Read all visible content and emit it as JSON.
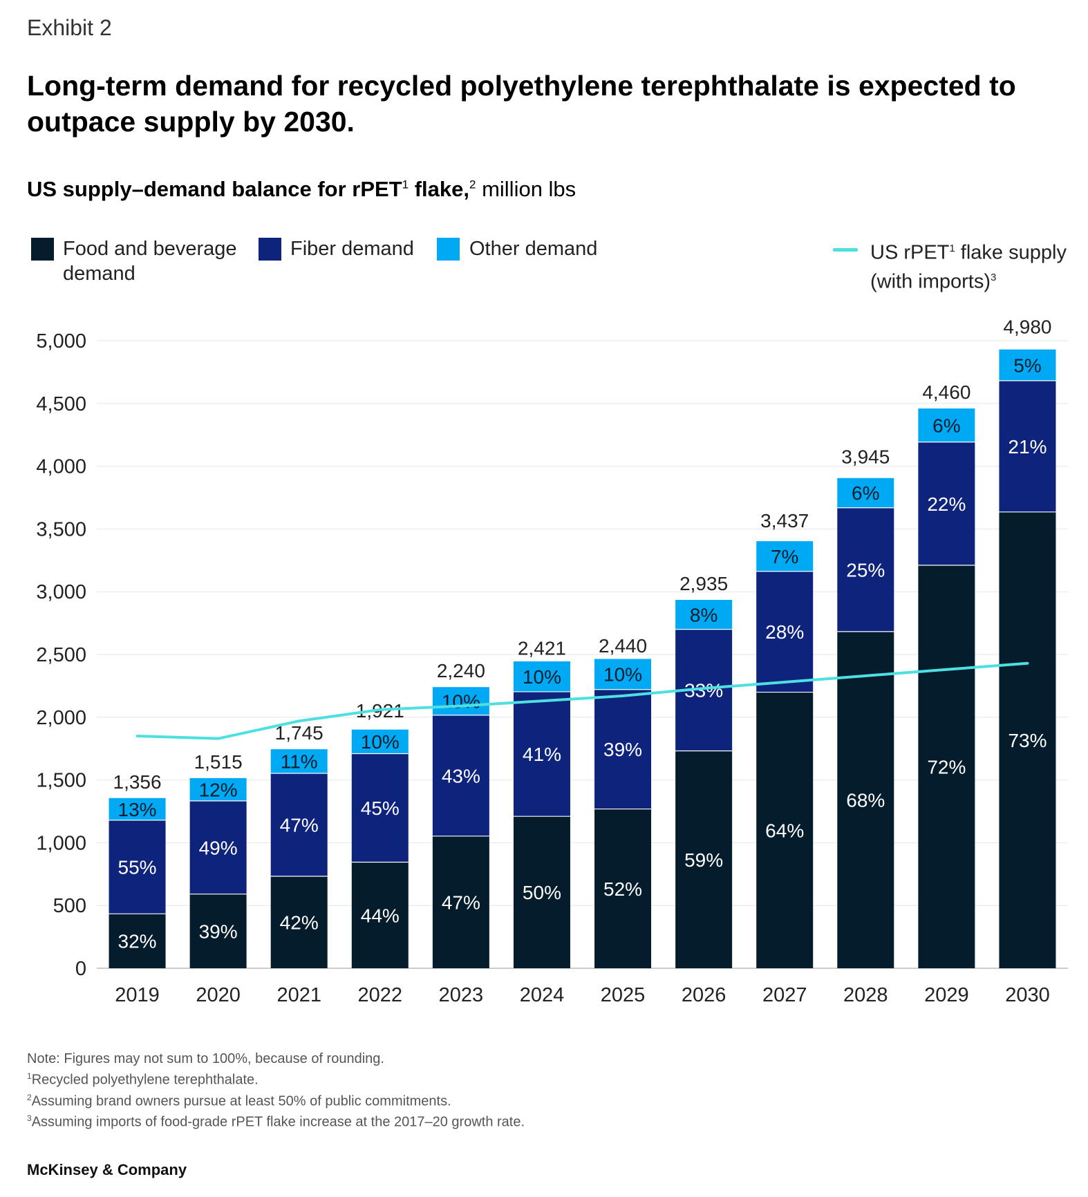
{
  "header": {
    "exhibit": "Exhibit 2",
    "title": "Long-term demand for recycled polyethylene terephthalate is expected to outpace supply by 2030.",
    "subtitle_bold": "US supply–demand balance for rPET",
    "subtitle_sup1": "1",
    "subtitle_bold2": " flake,",
    "subtitle_sup2": "2",
    "subtitle_rest": " million lbs"
  },
  "legend": {
    "food": "Food and beverage demand",
    "fiber": "Fiber demand",
    "other": "Other demand",
    "supply_a": "US rPET",
    "supply_sup": "1",
    "supply_b": " flake supply",
    "supply_c": "(with imports)",
    "supply_sup2": "3"
  },
  "colors": {
    "food": "#051c2c",
    "fiber": "#0e237c",
    "other": "#00a9f4",
    "supply": "#4ee0e0",
    "grid": "#e6e6e6"
  },
  "chart_data": {
    "type": "bar",
    "stacked": true,
    "categories": [
      "2019",
      "2020",
      "2021",
      "2022",
      "2023",
      "2024",
      "2025",
      "2026",
      "2027",
      "2028",
      "2029",
      "2030"
    ],
    "totals": [
      1356,
      1515,
      1745,
      1921,
      2240,
      2421,
      2440,
      2935,
      3437,
      3945,
      4460,
      4980
    ],
    "total_labels": [
      "1,356",
      "1,515",
      "1,745",
      "1,921",
      "2,240",
      "2,421",
      "2,440",
      "2,935",
      "3,437",
      "3,945",
      "4,460",
      "4,980"
    ],
    "series": [
      {
        "name": "Food and beverage demand",
        "percent": [
          32,
          39,
          42,
          44,
          47,
          50,
          52,
          59,
          64,
          68,
          72,
          73
        ]
      },
      {
        "name": "Fiber demand",
        "percent": [
          55,
          49,
          47,
          45,
          43,
          41,
          39,
          33,
          28,
          25,
          22,
          21
        ]
      },
      {
        "name": "Other demand",
        "percent": [
          13,
          12,
          11,
          10,
          10,
          10,
          10,
          8,
          7,
          6,
          6,
          5
        ]
      }
    ],
    "line": {
      "name": "US rPET flake supply (with imports)",
      "values": [
        1850,
        1830,
        1970,
        2060,
        2090,
        2130,
        2170,
        2230,
        2280,
        2330,
        2380,
        2430
      ]
    },
    "yticks": [
      0,
      500,
      1000,
      1500,
      2000,
      2500,
      3000,
      3500,
      4000,
      4500,
      5000
    ],
    "ytick_labels": [
      "0",
      "500",
      "1,000",
      "1,500",
      "2,000",
      "2,500",
      "3,000",
      "3,500",
      "4,000",
      "4,500",
      "5,000"
    ],
    "ylim": [
      0,
      5000
    ],
    "grid": true,
    "legend_position": "top"
  },
  "notes": {
    "note": "Note: Figures may not sum to 100%, because of rounding.",
    "fn1_num": "1",
    "fn1": "Recycled polyethylene terephthalate.",
    "fn2_num": "2",
    "fn2": "Assuming brand owners pursue at least 50% of public commitments.",
    "fn3_num": "3",
    "fn3": "Assuming imports of food-grade rPET flake increase at the 2017–20 growth rate."
  },
  "brand": "McKinsey & Company"
}
